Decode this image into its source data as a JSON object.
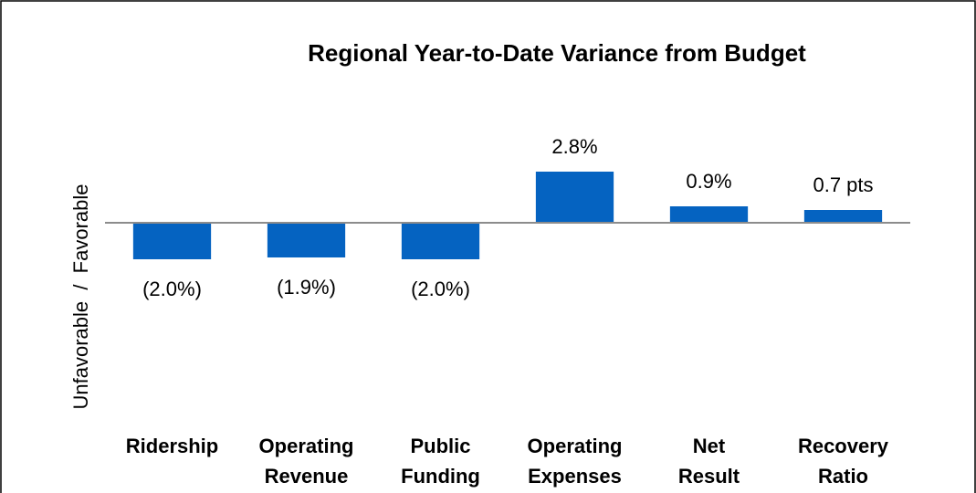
{
  "chart_data": {
    "type": "bar",
    "title": "Regional Year-to-Date Variance from Budget",
    "y_label": "Unfavorable  /  Favorable",
    "categories": [
      "Ridership",
      "Operating Revenue",
      "Public Funding",
      "Operating Expenses",
      "Net Result",
      "Recovery Ratio"
    ],
    "values": [
      -2.0,
      -1.9,
      -2.0,
      2.8,
      0.9,
      0.7
    ],
    "value_labels": [
      "(2.0%)",
      "(1.9%)",
      "(2.0%)",
      "2.8%",
      "0.9%",
      "0.7 pts"
    ],
    "color": "#0563c1",
    "ylim": [
      -10,
      7
    ],
    "grid": false
  }
}
